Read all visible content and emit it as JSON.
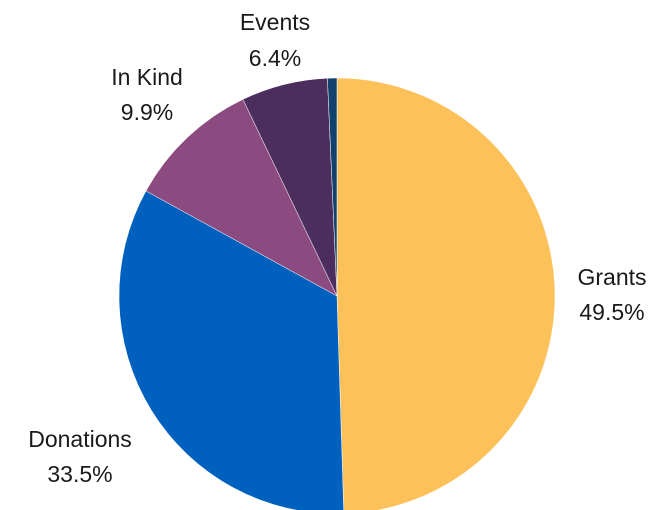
{
  "chart_data": {
    "type": "pie",
    "title": "",
    "start_angle_deg": 0,
    "direction": "clockwise",
    "slices": [
      {
        "name": "Grants",
        "value": 49.5,
        "label_value": "49.5%",
        "color": "#FCC159"
      },
      {
        "name": "Donations",
        "value": 33.5,
        "label_value": "33.5%",
        "color": "#0060BE"
      },
      {
        "name": "In Kind",
        "value": 9.9,
        "label_value": "9.9%",
        "color": "#8B4A80"
      },
      {
        "name": "Events",
        "value": 6.4,
        "label_value": "6.4%",
        "color": "#4B2E5E"
      },
      {
        "name": "",
        "value": 0.7,
        "label_value": "",
        "color": "#12416E"
      }
    ]
  }
}
